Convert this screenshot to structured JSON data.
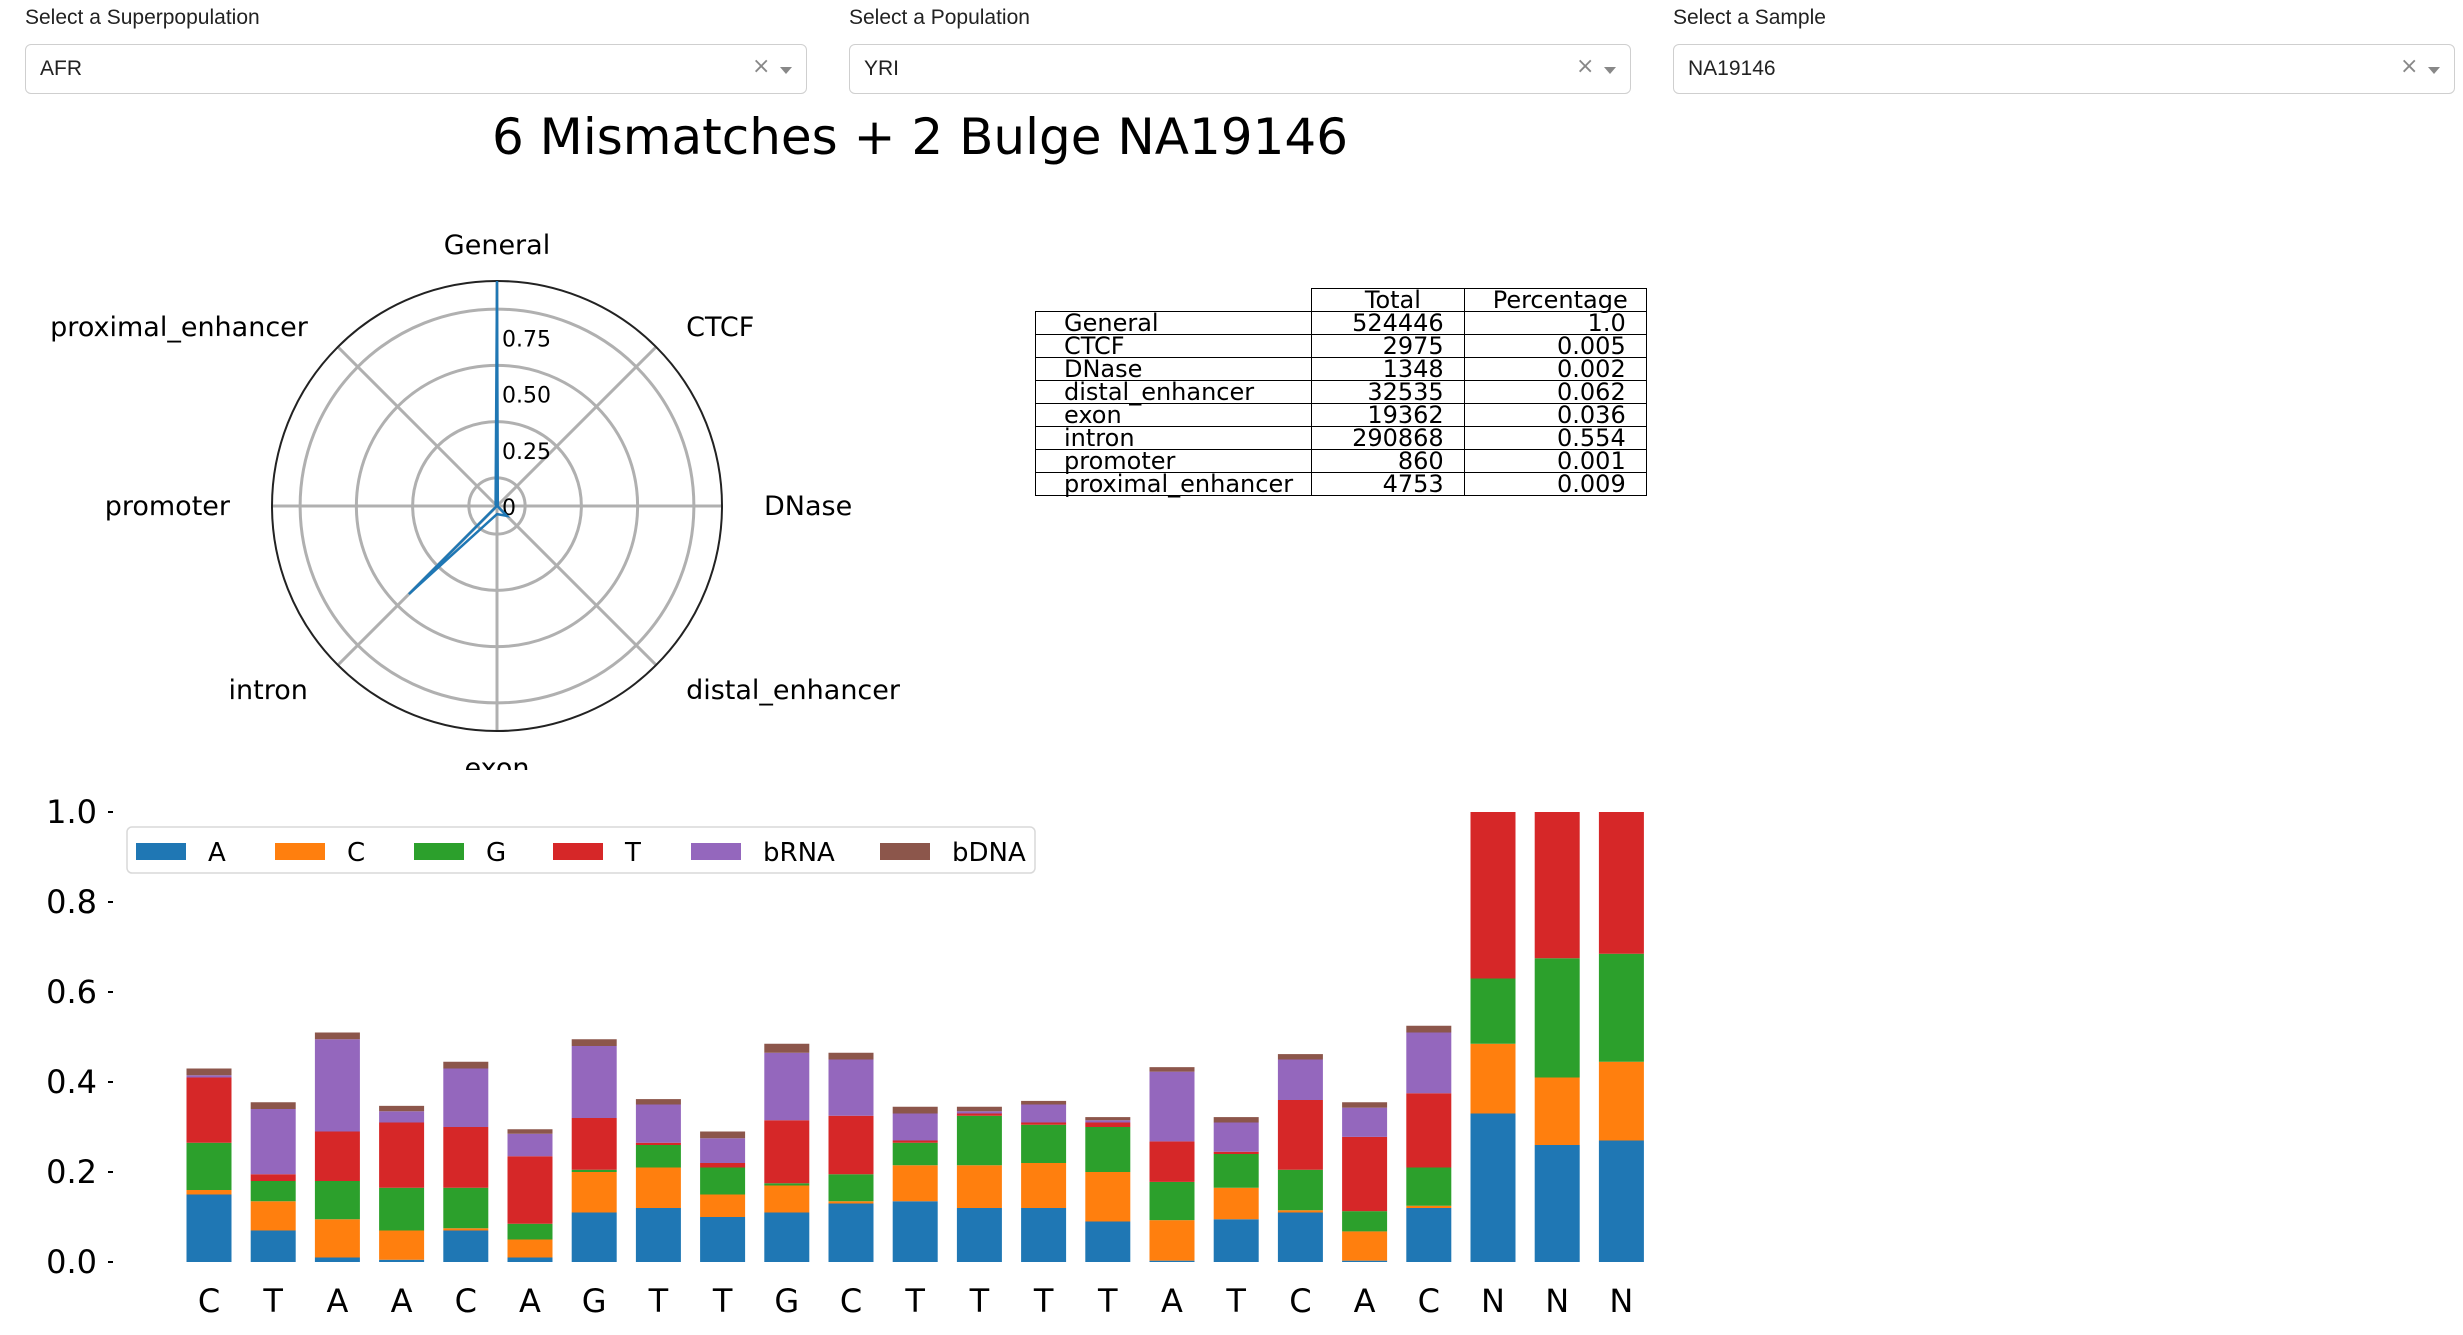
{
  "selectors": {
    "superpopulation": {
      "label": "Select a Superpopulation",
      "value": "AFR",
      "clear": "×"
    },
    "population": {
      "label": "Select a Population",
      "value": "YRI",
      "clear": "×"
    },
    "sample": {
      "label": "Select a Sample",
      "value": "NA19146",
      "clear": "×"
    }
  },
  "title": "6 Mismatches + 2 Bulge NA19146",
  "table": {
    "headers": [
      "Total",
      "Percentage"
    ],
    "rows": [
      {
        "name": "General",
        "total": "524446",
        "pct": "1.0"
      },
      {
        "name": "CTCF",
        "total": "2975",
        "pct": "0.005"
      },
      {
        "name": "DNase",
        "total": "1348",
        "pct": "0.002"
      },
      {
        "name": "distal_enhancer",
        "total": "32535",
        "pct": "0.062"
      },
      {
        "name": "exon",
        "total": "19362",
        "pct": "0.036"
      },
      {
        "name": "intron",
        "total": "290868",
        "pct": "0.554"
      },
      {
        "name": "promoter",
        "total": "860",
        "pct": "0.001"
      },
      {
        "name": "proximal_enhancer",
        "total": "4753",
        "pct": "0.009"
      }
    ]
  },
  "chart_data": [
    {
      "type": "radar",
      "categories": [
        "General",
        "CTCF",
        "DNase",
        "distal_enhancer",
        "exon",
        "intron",
        "promoter",
        "proximal_enhancer"
      ],
      "values": [
        1.0,
        0.005,
        0.002,
        0.062,
        0.036,
        0.554,
        0.001,
        0.009
      ],
      "radial_ticks": [
        "0",
        "0.25",
        "0.50",
        "0.75"
      ],
      "radial_tick_values": [
        0,
        0.25,
        0.5,
        0.75
      ],
      "rmax": 1.0,
      "grid": true,
      "color": "#1f77b4"
    },
    {
      "type": "bar",
      "stacked": true,
      "categories": [
        "C",
        "T",
        "A",
        "A",
        "C",
        "A",
        "G",
        "T",
        "T",
        "G",
        "C",
        "T",
        "T",
        "T",
        "T",
        "A",
        "T",
        "C",
        "A",
        "C",
        "N",
        "N",
        "N"
      ],
      "series": [
        {
          "name": "A",
          "color": "#1f77b4",
          "values": [
            0.15,
            0.07,
            0.01,
            0.005,
            0.07,
            0.01,
            0.11,
            0.12,
            0.1,
            0.11,
            0.13,
            0.135,
            0.12,
            0.12,
            0.09,
            0.003,
            0.095,
            0.11,
            0.003,
            0.12,
            0.33,
            0.26,
            0.27
          ]
        },
        {
          "name": "C",
          "color": "#ff7f0e",
          "values": [
            0.01,
            0.065,
            0.085,
            0.065,
            0.005,
            0.04,
            0.09,
            0.09,
            0.05,
            0.06,
            0.005,
            0.08,
            0.095,
            0.1,
            0.11,
            0.09,
            0.07,
            0.005,
            0.065,
            0.005,
            0.155,
            0.15,
            0.175
          ]
        },
        {
          "name": "G",
          "color": "#2ca02c",
          "values": [
            0.105,
            0.045,
            0.085,
            0.095,
            0.09,
            0.035,
            0.005,
            0.05,
            0.06,
            0.005,
            0.06,
            0.05,
            0.11,
            0.085,
            0.1,
            0.085,
            0.075,
            0.09,
            0.045,
            0.085,
            0.145,
            0.265,
            0.24
          ]
        },
        {
          "name": "T",
          "color": "#d62728",
          "values": [
            0.145,
            0.015,
            0.11,
            0.145,
            0.135,
            0.15,
            0.115,
            0.005,
            0.01,
            0.14,
            0.13,
            0.005,
            0.005,
            0.005,
            0.01,
            0.09,
            0.005,
            0.155,
            0.165,
            0.165,
            0.37,
            0.325,
            0.315
          ]
        },
        {
          "name": "bRNA",
          "color": "#9467bd",
          "values": [
            0.005,
            0.145,
            0.205,
            0.025,
            0.13,
            0.05,
            0.16,
            0.085,
            0.055,
            0.15,
            0.125,
            0.06,
            0.005,
            0.04,
            0.005,
            0.155,
            0.065,
            0.09,
            0.065,
            0.135,
            0,
            0,
            0
          ]
        },
        {
          "name": "bDNA",
          "color": "#8c564b",
          "values": [
            0.015,
            0.015,
            0.015,
            0.012,
            0.015,
            0.01,
            0.015,
            0.012,
            0.015,
            0.02,
            0.015,
            0.015,
            0.01,
            0.008,
            0.007,
            0.01,
            0.012,
            0.012,
            0.012,
            0.015,
            0,
            0,
            0
          ]
        }
      ],
      "yticks": [
        "0.0",
        "0.2",
        "0.4",
        "0.6",
        "0.8",
        "1.0"
      ],
      "ylim": [
        0,
        1.0
      ],
      "legend": "top-left, horizontal"
    }
  ]
}
